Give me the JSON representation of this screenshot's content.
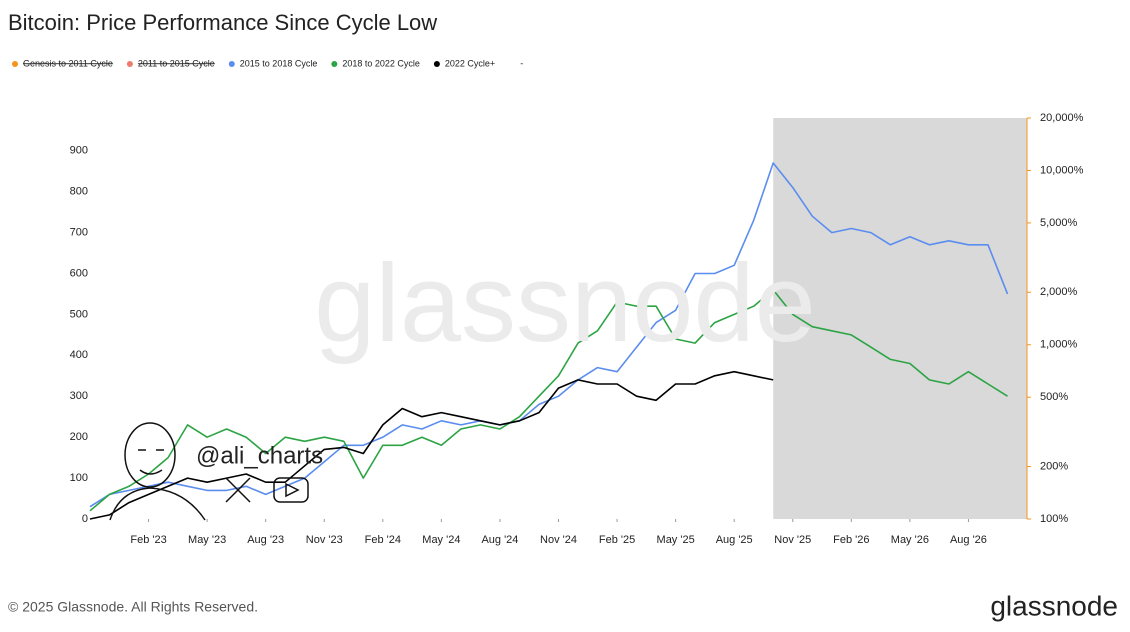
{
  "chart_data": {
    "type": "line",
    "title": "Bitcoin: Price Performance Since Cycle Low",
    "watermark": "glassnode",
    "annotation": "@ali_charts",
    "copyright": "© 2025 Glassnode. All Rights Reserved.",
    "brand": "glassnode",
    "x": [
      "2022-11",
      "2022-12",
      "2023-01",
      "2023-02",
      "2023-03",
      "2023-04",
      "2023-05",
      "2023-06",
      "2023-07",
      "2023-08",
      "2023-09",
      "2023-10",
      "2023-11",
      "2023-12",
      "2024-01",
      "2024-02",
      "2024-03",
      "2024-04",
      "2024-05",
      "2024-06",
      "2024-07",
      "2024-08",
      "2024-09",
      "2024-10",
      "2024-11",
      "2024-12",
      "2025-01",
      "2025-02",
      "2025-03",
      "2025-04",
      "2025-05",
      "2025-06",
      "2025-07",
      "2025-08",
      "2025-09",
      "2025-10",
      "2025-11",
      "2025-12",
      "2026-01",
      "2026-02",
      "2026-03",
      "2026-04",
      "2026-05",
      "2026-06",
      "2026-07",
      "2026-08",
      "2026-09",
      "2026-10"
    ],
    "xlim": [
      "2022-11",
      "2026-11"
    ],
    "xticks": [
      {
        "value": "2023-02",
        "label": "Feb '23"
      },
      {
        "value": "2023-05",
        "label": "May '23"
      },
      {
        "value": "2023-08",
        "label": "Aug '23"
      },
      {
        "value": "2023-11",
        "label": "Nov '23"
      },
      {
        "value": "2024-02",
        "label": "Feb '24"
      },
      {
        "value": "2024-05",
        "label": "May '24"
      },
      {
        "value": "2024-08",
        "label": "Aug '24"
      },
      {
        "value": "2024-11",
        "label": "Nov '24"
      },
      {
        "value": "2025-02",
        "label": "Feb '25"
      },
      {
        "value": "2025-05",
        "label": "May '25"
      },
      {
        "value": "2025-08",
        "label": "Aug '25"
      },
      {
        "value": "2025-11",
        "label": "Nov '25"
      },
      {
        "value": "2026-02",
        "label": "Feb '26"
      },
      {
        "value": "2026-05",
        "label": "May '26"
      },
      {
        "value": "2026-08",
        "label": "Aug '26"
      }
    ],
    "ylim": [
      0,
      980
    ],
    "yticks": [
      0,
      100,
      200,
      300,
      400,
      500,
      600,
      700,
      800,
      900
    ],
    "y2lim": [
      100,
      20000
    ],
    "y2log": true,
    "y2ticks": [
      {
        "value": 100,
        "label": "100%"
      },
      {
        "value": 200,
        "label": "200%"
      },
      {
        "value": 500,
        "label": "500%"
      },
      {
        "value": 1000,
        "label": "1,000%"
      },
      {
        "value": 2000,
        "label": "2,000%"
      },
      {
        "value": 5000,
        "label": "5,000%"
      },
      {
        "value": 10000,
        "label": "10,000%"
      },
      {
        "value": 20000,
        "label": "20,000%"
      }
    ],
    "y2color": "#f7931a",
    "shaded_region": {
      "x": [
        "2025-10",
        "2026-11"
      ],
      "color": "#d9d9d9"
    },
    "series": [
      {
        "name": "Genesis to 2011 Cycle",
        "color": "#f7931a",
        "hidden": true
      },
      {
        "name": "2011 to 2015 Cycle",
        "color": "#f07a6a",
        "hidden": true
      },
      {
        "name": "2015 to 2018 Cycle",
        "color": "#5b8def",
        "values": [
          30,
          60,
          70,
          80,
          90,
          80,
          70,
          70,
          80,
          60,
          80,
          100,
          140,
          180,
          180,
          200,
          230,
          220,
          240,
          230,
          240,
          230,
          240,
          280,
          300,
          340,
          370,
          360,
          420,
          480,
          510,
          600,
          600,
          620,
          730,
          870,
          810,
          740,
          700,
          710,
          700,
          670,
          690,
          670,
          680,
          670,
          670,
          550
        ]
      },
      {
        "name": "2018 to 2022 Cycle",
        "color": "#2ca444",
        "values": [
          20,
          60,
          80,
          110,
          150,
          230,
          200,
          220,
          200,
          160,
          200,
          190,
          200,
          190,
          100,
          180,
          180,
          200,
          180,
          220,
          230,
          220,
          250,
          300,
          350,
          430,
          460,
          530,
          520,
          520,
          440,
          430,
          480,
          500,
          520,
          560,
          500,
          470,
          460,
          450,
          420,
          390,
          380,
          340,
          330,
          360,
          330,
          300
        ]
      },
      {
        "name": "2022 Cycle+",
        "color": "#000000",
        "values": [
          0,
          10,
          40,
          60,
          80,
          100,
          90,
          100,
          110,
          90,
          90,
          130,
          170,
          175,
          160,
          230,
          270,
          250,
          260,
          250,
          240,
          230,
          240,
          260,
          320,
          340,
          330,
          330,
          300,
          290,
          330,
          330,
          350,
          360,
          350,
          340,
          null,
          null,
          null,
          null,
          null,
          null,
          null,
          null,
          null,
          null,
          null,
          null
        ]
      },
      {
        "name": "-"
      }
    ]
  }
}
